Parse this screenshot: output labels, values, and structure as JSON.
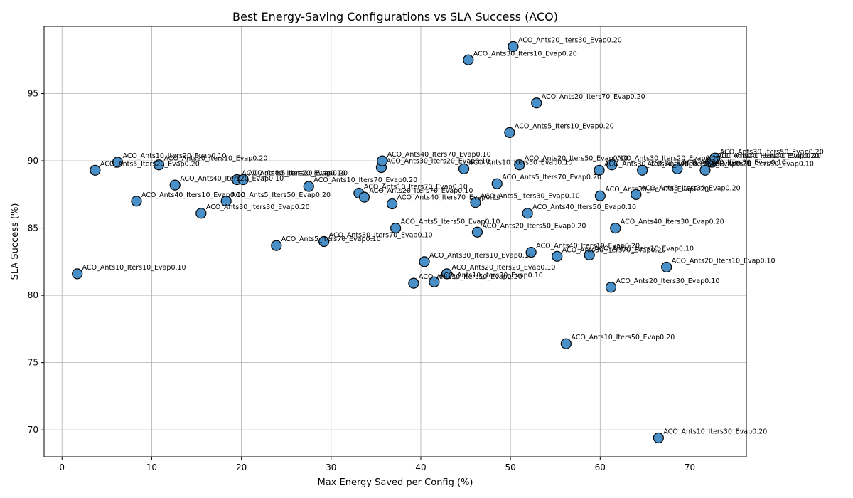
{
  "chart_data": {
    "type": "scatter",
    "title": "Best Energy-Saving Configurations vs SLA Success (ACO)",
    "xlabel": "Max Energy Saved per Config (%)",
    "ylabel": "SLA Success (%)",
    "xlim": [
      -2,
      76.3
    ],
    "ylim": [
      68,
      100
    ],
    "xticks": [
      0,
      10,
      20,
      30,
      40,
      50,
      60,
      70
    ],
    "yticks": [
      70,
      75,
      80,
      85,
      90,
      95
    ],
    "grid": true,
    "point_color": "#4a90c8",
    "points": [
      {
        "x": 1.7,
        "y": 81.6,
        "label": "ACO_Ants10_Iters10_Evap0.10"
      },
      {
        "x": 3.7,
        "y": 89.3,
        "label": "ACO_Ants5_Iters20_Evap0.20"
      },
      {
        "x": 6.2,
        "y": 89.9,
        "label": "ACO_Ants10_Iters20_Evap0.10"
      },
      {
        "x": 8.3,
        "y": 87.0,
        "label": "ACO_Ants40_Iters10_Evap0.10"
      },
      {
        "x": 10.8,
        "y": 89.7,
        "label": "ACO_Ants20_Iters10_Evap0.20"
      },
      {
        "x": 12.6,
        "y": 88.2,
        "label": "ACO_Ants40_Iters20_Evap0.10"
      },
      {
        "x": 15.5,
        "y": 86.1,
        "label": "ACO_Ants30_Iters30_Evap0.20"
      },
      {
        "x": 18.3,
        "y": 87.0,
        "label": "ACO_Ants5_Iters50_Evap0.20"
      },
      {
        "x": 19.5,
        "y": 88.6,
        "label": "ACO_Ants40_Iters20_Evap0.10"
      },
      {
        "x": 20.2,
        "y": 88.6,
        "label": "ACO_Ants5_Iters20_Evap0.20"
      },
      {
        "x": 23.9,
        "y": 83.7,
        "label": "ACO_Ants5_Iters70_Evap0.10"
      },
      {
        "x": 27.5,
        "y": 88.1,
        "label": "ACO_Ants10_Iters70_Evap0.20"
      },
      {
        "x": 29.2,
        "y": 84.0,
        "label": "ACO_Ants30_Iters70_Evap0.10"
      },
      {
        "x": 33.1,
        "y": 87.6,
        "label": "ACO_Ants10_Iters70_Evap0.10"
      },
      {
        "x": 33.7,
        "y": 87.3,
        "label": "ACO_Ants20_Iters70_Evap0.10"
      },
      {
        "x": 35.6,
        "y": 89.5,
        "label": "ACO_Ants30_Iters20_Evap0.10"
      },
      {
        "x": 35.7,
        "y": 90.0,
        "label": "ACO_Ants40_Iters70_Evap0.10"
      },
      {
        "x": 36.8,
        "y": 86.8,
        "label": "ACO_Ants40_Iters70_Evap0.20"
      },
      {
        "x": 37.2,
        "y": 85.0,
        "label": "ACO_Ants5_Iters50_Evap0.10"
      },
      {
        "x": 39.2,
        "y": 80.9,
        "label": "ACO_Ants30_Iters50_Evap0.20"
      },
      {
        "x": 40.4,
        "y": 82.5,
        "label": "ACO_Ants30_Iters10_Evap0.10"
      },
      {
        "x": 41.5,
        "y": 81.0,
        "label": "ACO_Ants10_Iters30_Evap0.10"
      },
      {
        "x": 42.9,
        "y": 81.6,
        "label": "ACO_Ants20_Iters20_Evap0.10"
      },
      {
        "x": 44.8,
        "y": 89.4,
        "label": "ACO_Ants10_Iters50_Evap0.10"
      },
      {
        "x": 45.3,
        "y": 97.5,
        "label": "ACO_Ants30_Iters10_Evap0.20"
      },
      {
        "x": 46.1,
        "y": 86.9,
        "label": "ACO_Ants5_Iters30_Evap0.10"
      },
      {
        "x": 46.3,
        "y": 84.7,
        "label": "ACO_Ants20_Iters50_Evap0.20"
      },
      {
        "x": 48.5,
        "y": 88.3,
        "label": "ACO_Ants5_Iters70_Evap0.20"
      },
      {
        "x": 49.9,
        "y": 92.1,
        "label": "ACO_Ants5_Iters10_Evap0.20"
      },
      {
        "x": 50.3,
        "y": 98.5,
        "label": "ACO_Ants20_Iters30_Evap0.20"
      },
      {
        "x": 51.0,
        "y": 89.7,
        "label": "ACO_Ants20_Iters50_Evap0.10"
      },
      {
        "x": 51.9,
        "y": 86.1,
        "label": "ACO_Ants40_Iters50_Evap0.10"
      },
      {
        "x": 52.3,
        "y": 83.2,
        "label": "ACO_Ants40_Iters10_Evap0.20"
      },
      {
        "x": 52.9,
        "y": 94.3,
        "label": "ACO_Ants20_Iters70_Evap0.20"
      },
      {
        "x": 55.2,
        "y": 82.9,
        "label": "ACO_Ants30_Iters70_Evap0.20"
      },
      {
        "x": 56.2,
        "y": 76.4,
        "label": "ACO_Ants10_Iters50_Evap0.20"
      },
      {
        "x": 58.8,
        "y": 83.0,
        "label": "ACO_Ants5_Iters10_Evap0.10"
      },
      {
        "x": 59.9,
        "y": 89.3,
        "label": "ACO_Ants30_Iters50_Evap0.10"
      },
      {
        "x": 60.0,
        "y": 87.4,
        "label": "ACO_Ants20_Iters20_Evap0.20"
      },
      {
        "x": 61.2,
        "y": 80.6,
        "label": "ACO_Ants20_Iters30_Evap0.10"
      },
      {
        "x": 61.3,
        "y": 89.7,
        "label": "ACO_Ants30_Iters20_Evap0.20"
      },
      {
        "x": 61.7,
        "y": 85.0,
        "label": "ACO_Ants40_Iters30_Evap0.20"
      },
      {
        "x": 64.0,
        "y": 87.5,
        "label": "ACO_Ants5_Iters30_Evap0.20"
      },
      {
        "x": 64.7,
        "y": 89.3,
        "label": "ACO_Ants40_Iters50_Evap0.20"
      },
      {
        "x": 66.5,
        "y": 69.4,
        "label": "ACO_Ants10_Iters30_Evap0.20"
      },
      {
        "x": 67.4,
        "y": 82.1,
        "label": "ACO_Ants20_Iters10_Evap0.10"
      },
      {
        "x": 68.6,
        "y": 89.4,
        "label": "ACO_Ants40_Iters30_Evap0.10"
      },
      {
        "x": 71.7,
        "y": 89.3,
        "label": "ACO_Ants30_Iters30_Evap0.10"
      },
      {
        "x": 72.3,
        "y": 89.9,
        "label": "ACO_Ants10_Iters10_Evap0.20"
      },
      {
        "x": 72.5,
        "y": 89.9,
        "label": "ACO_Ants40_Iters40_Evap0.20"
      },
      {
        "x": 72.8,
        "y": 90.2,
        "label": "ACO_Ants30_Iters50_Evap0.20"
      }
    ]
  }
}
